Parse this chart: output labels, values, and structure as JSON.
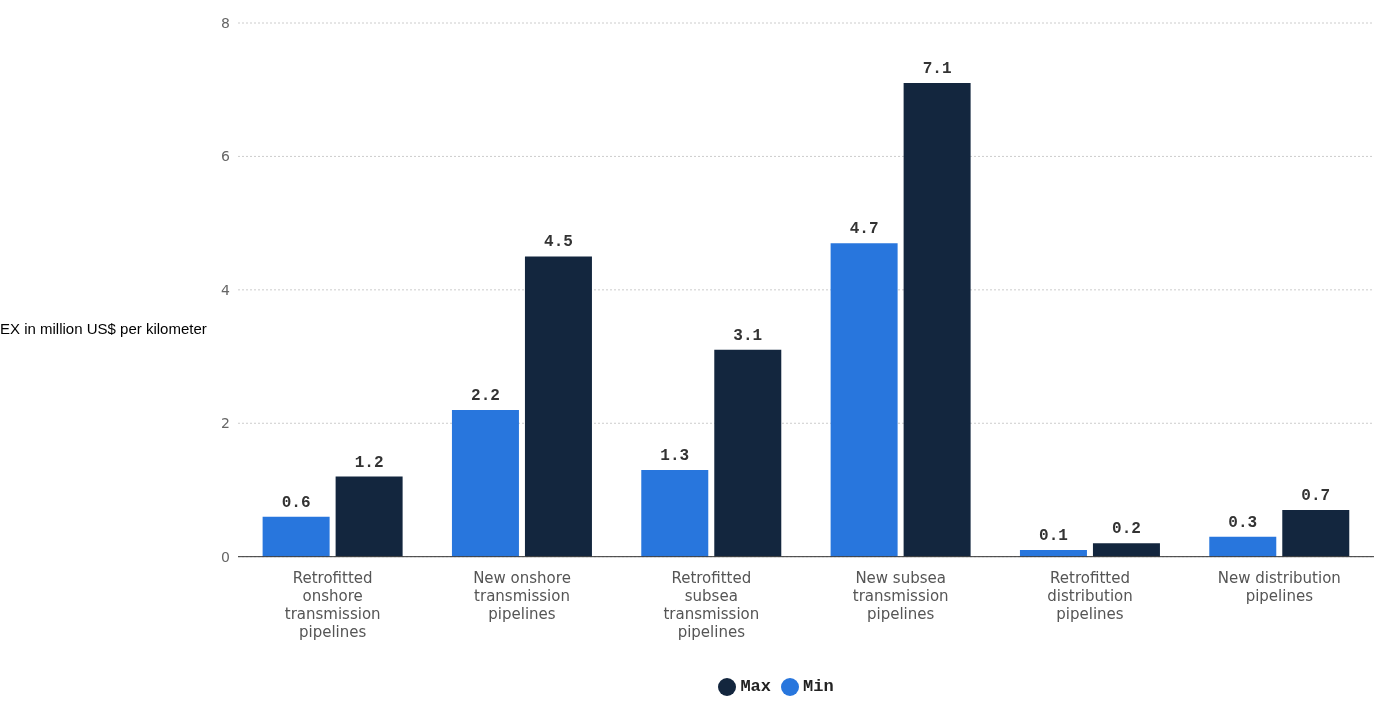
{
  "chart_data": {
    "type": "bar",
    "ylabel": "EX in million US$ per kilometer",
    "categories": [
      "Retrofitted onshore transmission pipelines",
      "New onshore transmission pipelines",
      "Retrofitted subsea transmission pipelines",
      "New subsea transmission pipelines",
      "Retrofitted distribution pipelines",
      "New distribution pipelines"
    ],
    "series": [
      {
        "name": "Min",
        "color": "#2876dd",
        "values": [
          0.6,
          2.2,
          1.3,
          4.7,
          0.1,
          0.3
        ]
      },
      {
        "name": "Max",
        "color": "#13263e",
        "values": [
          1.2,
          4.5,
          3.1,
          7.1,
          0.2,
          0.7
        ]
      }
    ],
    "ylim": [
      0,
      8
    ],
    "yticks": [
      0,
      2,
      4,
      6,
      8
    ],
    "grid": "y",
    "legend": "bottom",
    "data_labels": true
  }
}
